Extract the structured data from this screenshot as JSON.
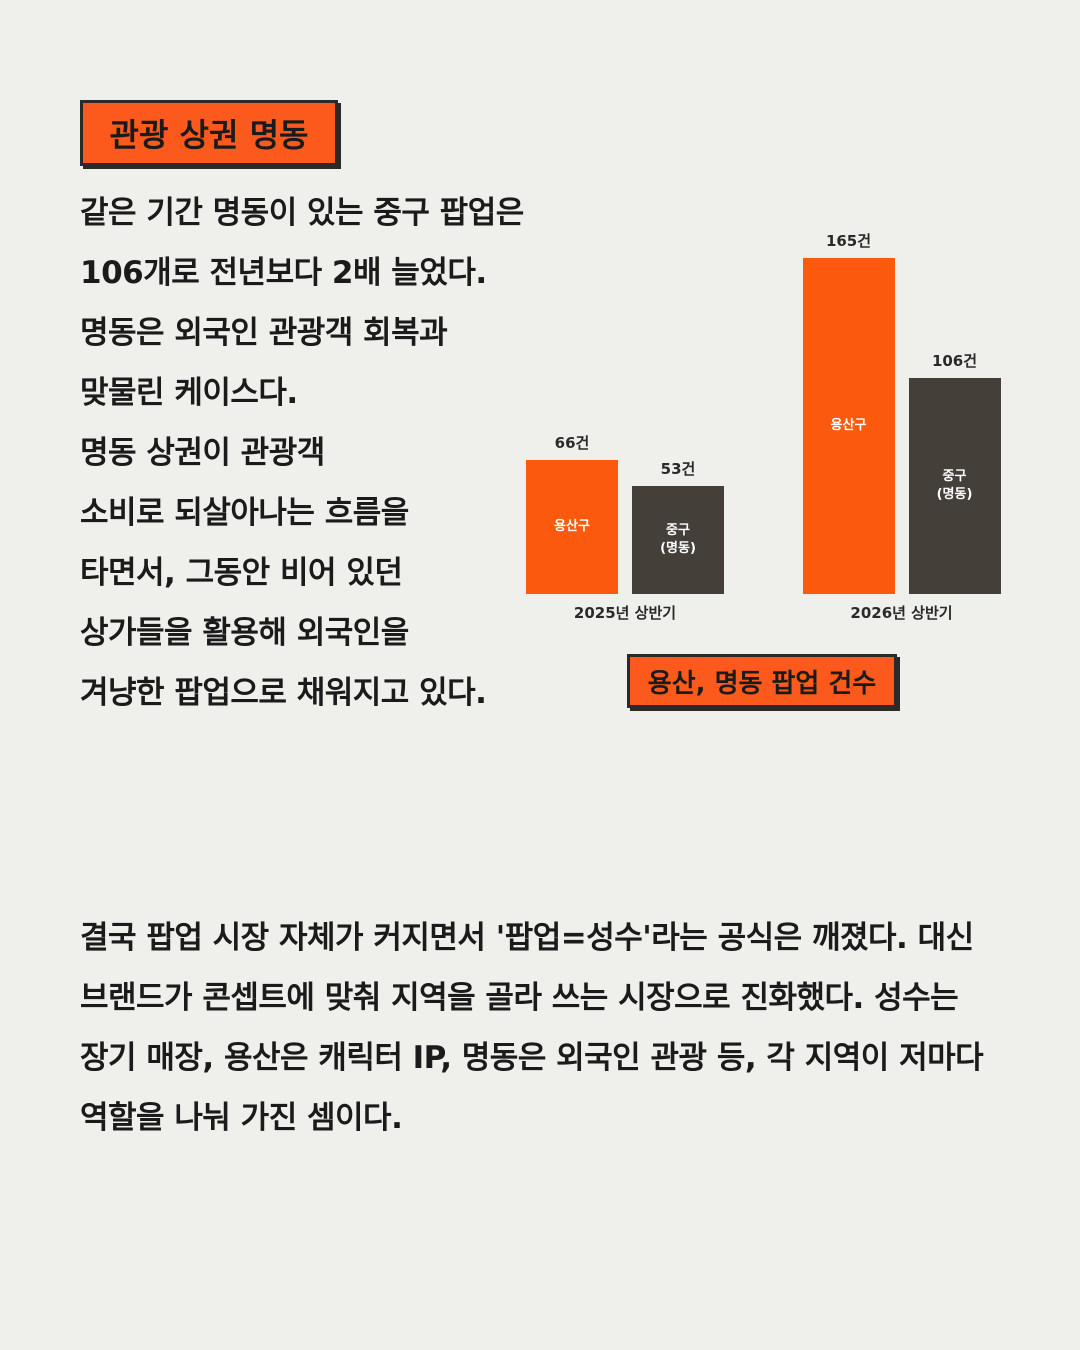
{
  "section_badge": "관광 상권 명동",
  "intro_lines": [
    "같은 기간 명동이 있는 중구 팝업은",
    "106개로 전년보다 2배 늘었다.",
    "명동은 외국인 관광객 회복과",
    "맞물린 케이스다.",
    "명동 상권이 관광객",
    "소비로 되살아나는 흐름을",
    "타면서, 그동안 비어 있던",
    "상가들을 활용해 외국인을",
    "겨냥한 팝업으로 채워지고 있다."
  ],
  "chart_data": {
    "type": "bar",
    "title": "용산, 명동 팝업 건수",
    "categories": [
      "2025년 상반기",
      "2026년 상반기"
    ],
    "series": [
      {
        "name": "용산구",
        "color": "#fb5a0e",
        "values": [
          66,
          165
        ],
        "value_labels": [
          "66건",
          "165건"
        ]
      },
      {
        "name": "중구\n(명동)",
        "color": "#453f39",
        "values": [
          53,
          106
        ],
        "value_labels": [
          "53건",
          "106건"
        ]
      }
    ]
  },
  "closing_lines": [
    "결국 팝업 시장 자체가 커지면서 '팝업=성수'라는 공식은 깨졌다. 대신",
    "브랜드가 콘셉트에 맞춰 지역을 골라 쓰는 시장으로 진화했다. 성수는",
    "장기 매장, 용산은 캐릭터 IP, 명동은 외국인 관광 등, 각 지역이 저마다",
    "역할을 나눠 가진 셈이다."
  ]
}
